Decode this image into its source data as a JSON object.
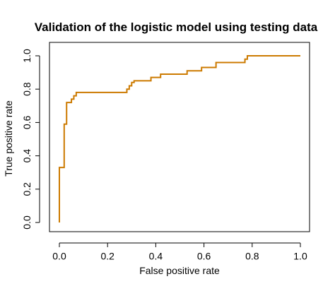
{
  "chart_data": {
    "type": "line",
    "title": "Validation of the logistic model using testing data",
    "xlabel": "False positive rate",
    "ylabel": "True positive rate",
    "xlim": [
      0,
      1
    ],
    "ylim": [
      0,
      1
    ],
    "x_ticks": [
      0.0,
      0.2,
      0.4,
      0.6,
      0.8,
      1.0
    ],
    "x_tick_labels": [
      "0.0",
      "0.2",
      "0.4",
      "0.6",
      "0.8",
      "1.0"
    ],
    "y_ticks": [
      0.0,
      0.2,
      0.4,
      0.6,
      0.8,
      1.0
    ],
    "y_tick_labels": [
      "0.0",
      "0.2",
      "0.4",
      "0.6",
      "0.8",
      "1.0"
    ],
    "grid": false,
    "line_color": "#CC7A00",
    "series": [
      {
        "step": true,
        "x": [
          0.0,
          0.0,
          0.01,
          0.02,
          0.03,
          0.04,
          0.05,
          0.06,
          0.07,
          0.08,
          0.27,
          0.28,
          0.29,
          0.3,
          0.31,
          0.38,
          0.42,
          0.53,
          0.59,
          0.65,
          0.76,
          0.77,
          0.78,
          1.0
        ],
        "y": [
          0.0,
          0.33,
          0.33,
          0.59,
          0.72,
          0.72,
          0.74,
          0.76,
          0.78,
          0.78,
          0.78,
          0.8,
          0.82,
          0.84,
          0.85,
          0.87,
          0.89,
          0.91,
          0.93,
          0.96,
          0.96,
          0.98,
          1.0,
          1.0
        ]
      }
    ]
  }
}
